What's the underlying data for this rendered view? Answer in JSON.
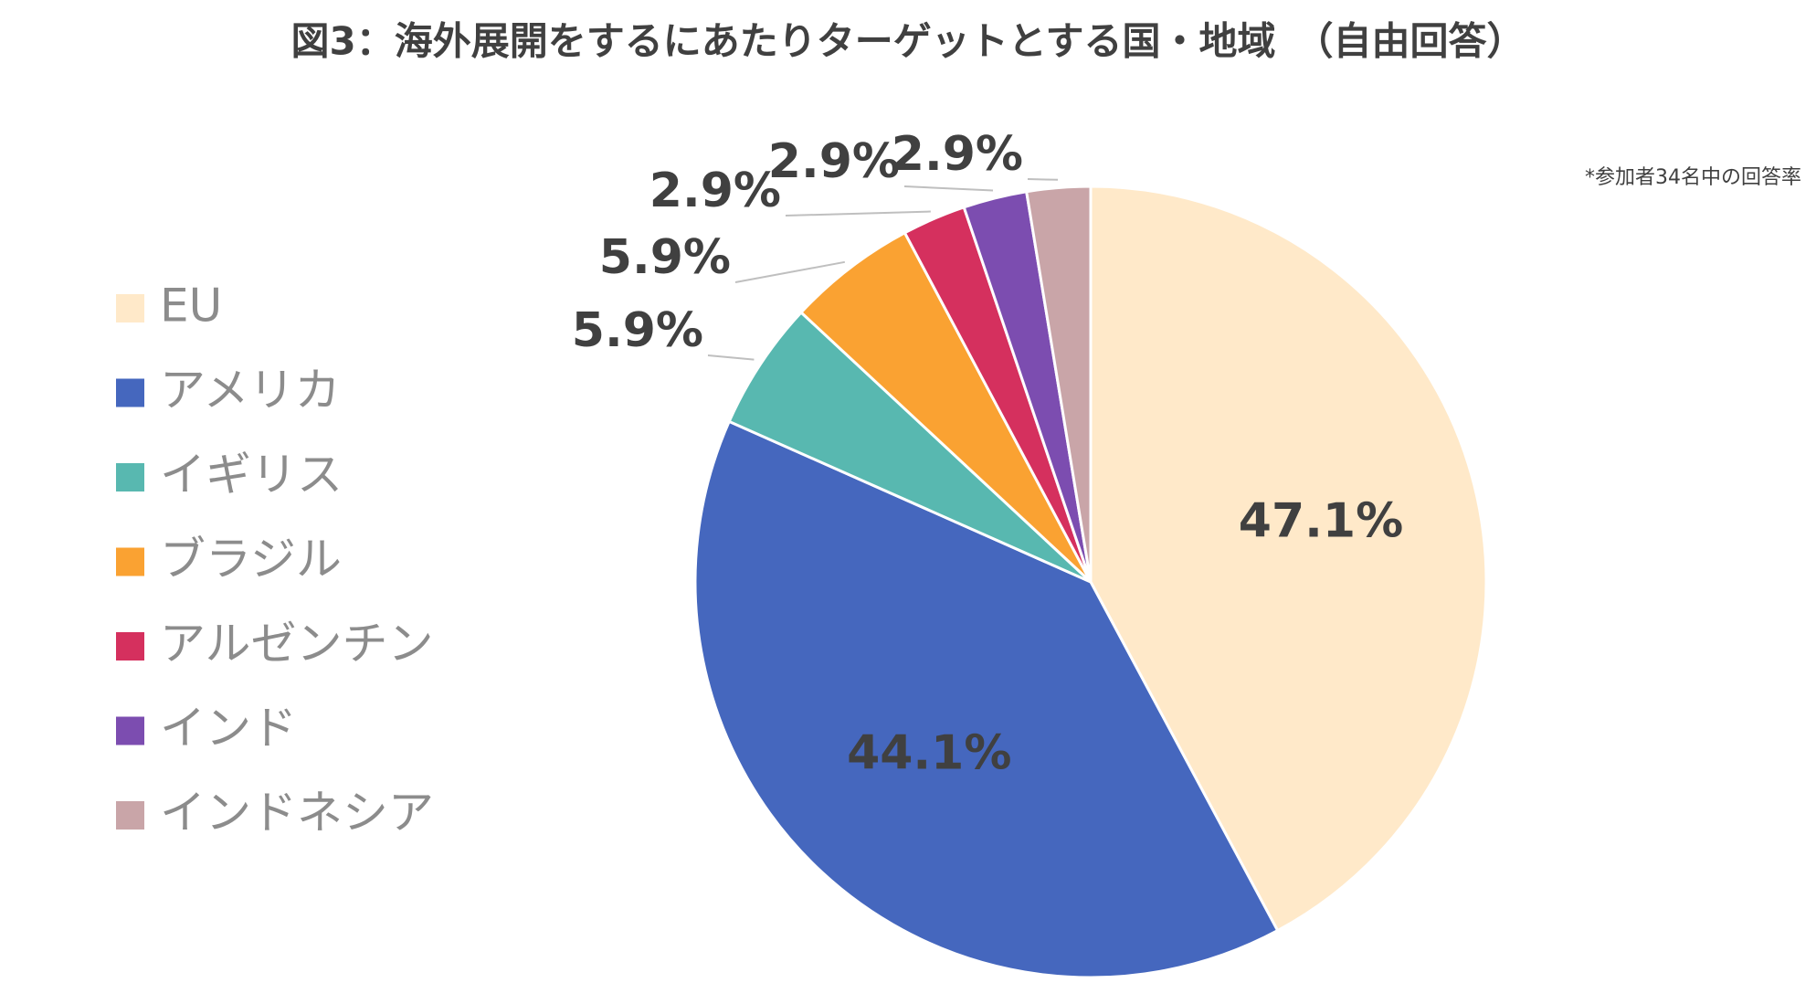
{
  "chart_data": {
    "type": "pie",
    "title": "図3：海外展開をするにあたりターゲットとする国・地域　（自由回答）",
    "annotation": "*参加者34名中の回答率",
    "categories": [
      "EU",
      "アメリカ",
      "イギリス",
      "ブラジル",
      "アルゼンチン",
      "インド",
      "インドネシア"
    ],
    "values": [
      47.1,
      44.1,
      5.9,
      5.9,
      2.9,
      2.9,
      2.9
    ],
    "value_labels": [
      "47.1%",
      "44.1%",
      "5.9%",
      "5.9%",
      "2.9%",
      "2.9%",
      "2.9%"
    ],
    "colors": [
      "#FFE9C9",
      "#4567BE",
      "#58B8B0",
      "#FAA232",
      "#D5305E",
      "#7C4DB0",
      "#C9A5A8"
    ],
    "legend": "left"
  }
}
